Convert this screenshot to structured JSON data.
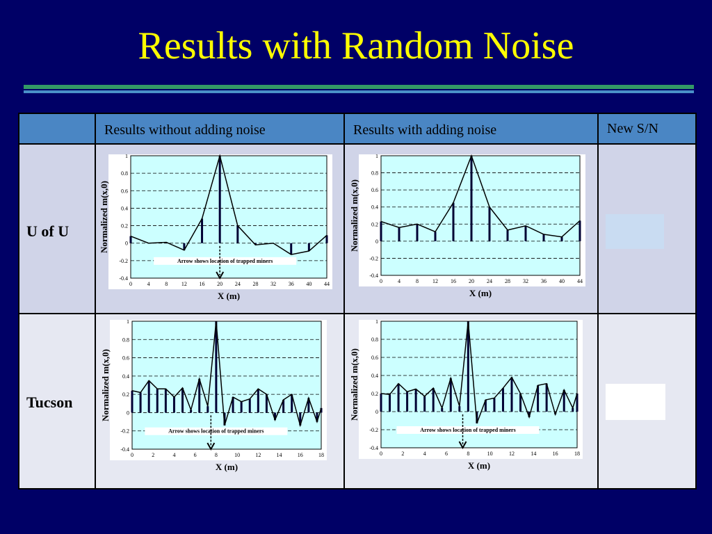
{
  "slide": {
    "title": "Results with Random Noise"
  },
  "table": {
    "headers": [
      "",
      "Results without adding noise",
      "Results with adding noise",
      "New S/N"
    ],
    "rows": [
      "U of U",
      "Tucson"
    ]
  },
  "colors": {
    "background": "#000066",
    "title": "#ffff00",
    "header": "#4a86c4",
    "plot_bg": "#ccffff"
  },
  "plots": {
    "ylabel": "Normalized m(x,0)",
    "xlabel": "X (m)",
    "annotation": "Arrow shows location of trapped miners"
  },
  "chart_data": [
    {
      "type": "line",
      "panel": "U of U - Results without adding noise",
      "x": [
        0,
        4,
        8,
        12,
        16,
        20,
        24,
        28,
        32,
        36,
        40,
        44
      ],
      "y": [
        0.08,
        0,
        0.01,
        -0.08,
        0.28,
        1,
        0.2,
        -0.02,
        0,
        -0.13,
        -0.09,
        0.09
      ],
      "xlim": [
        0,
        44
      ],
      "ylim": [
        -0.4,
        1
      ],
      "xticks": [
        0,
        4,
        8,
        12,
        16,
        20,
        24,
        28,
        32,
        36,
        40,
        44
      ],
      "yticks": [
        -0.4,
        -0.2,
        0,
        0.2,
        0.4,
        0.6,
        0.8,
        1
      ],
      "xlabel": "X (m)",
      "ylabel": "Normalized m(x,0)",
      "annotation": "Arrow shows location of trapped miners",
      "arrow_x": 20
    },
    {
      "type": "line",
      "panel": "U of U - Results with adding noise",
      "x": [
        0,
        4,
        8,
        12,
        16,
        20,
        24,
        28,
        32,
        36,
        40,
        44
      ],
      "y": [
        0.23,
        0.16,
        0.2,
        0.11,
        0.45,
        1,
        0.4,
        0.13,
        0.18,
        0.08,
        0.05,
        0.24
      ],
      "xlim": [
        0,
        44
      ],
      "ylim": [
        -0.4,
        1
      ],
      "xticks": [
        0,
        4,
        8,
        12,
        16,
        20,
        24,
        28,
        32,
        36,
        40,
        44
      ],
      "yticks": [
        -0.4,
        -0.2,
        0,
        0.2,
        0.4,
        0.6,
        0.8,
        1
      ],
      "xlabel": "X (m)",
      "ylabel": "Normalized m(x,0)"
    },
    {
      "type": "line",
      "panel": "Tucson - Results without adding noise",
      "x": [
        0,
        0.8,
        1.6,
        2.4,
        3.2,
        4.0,
        4.8,
        5.6,
        6.4,
        7.2,
        8.0,
        8.8,
        9.6,
        10.4,
        11.2,
        12.0,
        12.8,
        13.6,
        14.4,
        15.2,
        16.0,
        16.8,
        17.6,
        18.0
      ],
      "y": [
        0.24,
        0.22,
        0.35,
        0.26,
        0.26,
        0.17,
        0.27,
        0.03,
        0.37,
        0.07,
        1,
        -0.14,
        0.17,
        0.12,
        0.15,
        0.26,
        0.2,
        -0.08,
        0.14,
        0.2,
        -0.14,
        0.16,
        -0.1,
        0.05
      ],
      "xlim": [
        0,
        18
      ],
      "ylim": [
        -0.4,
        1
      ],
      "xticks": [
        0,
        2,
        4,
        6,
        8,
        10,
        12,
        14,
        16,
        18
      ],
      "yticks": [
        -0.4,
        -0.2,
        0,
        0.2,
        0.4,
        0.6,
        0.8,
        1
      ],
      "xlabel": "X (m)",
      "ylabel": "Normalized m(x,0)",
      "annotation": "Arrow shows location of trapped miners",
      "arrow_x": 7.5
    },
    {
      "type": "line",
      "panel": "Tucson - Results with adding noise",
      "x": [
        0,
        0.8,
        1.6,
        2.4,
        3.2,
        4.0,
        4.8,
        5.6,
        6.4,
        7.2,
        8.0,
        8.8,
        9.6,
        10.4,
        11.2,
        12.0,
        12.8,
        13.6,
        14.4,
        15.2,
        16.0,
        16.8,
        17.6,
        18.0
      ],
      "y": [
        0.2,
        0.19,
        0.31,
        0.22,
        0.25,
        0.17,
        0.26,
        0.04,
        0.37,
        0.06,
        1,
        -0.13,
        0.13,
        0.15,
        0.26,
        0.38,
        0.2,
        -0.06,
        0.29,
        0.31,
        -0.03,
        0.24,
        0.04,
        0.2
      ],
      "xlim": [
        0,
        18
      ],
      "ylim": [
        -0.4,
        1
      ],
      "xticks": [
        0,
        2,
        4,
        6,
        8,
        10,
        12,
        14,
        16,
        18
      ],
      "yticks": [
        -0.4,
        -0.2,
        0,
        0.2,
        0.4,
        0.6,
        0.8,
        1
      ],
      "xlabel": "X (m)",
      "ylabel": "Normalized m(x,0)",
      "annotation": "Arrow shows location of trapped miners",
      "arrow_x": 7.5
    }
  ]
}
